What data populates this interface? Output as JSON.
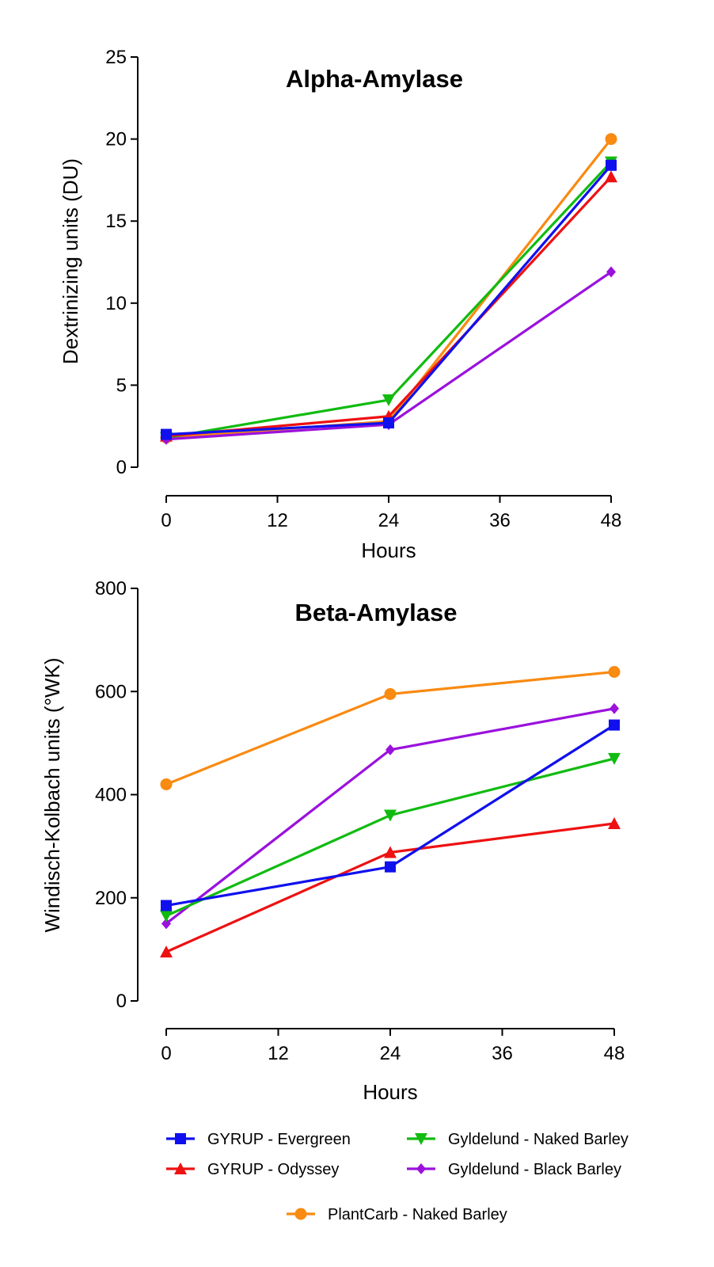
{
  "legend": [
    {
      "name": "GYRUP - Evergreen",
      "color": "#1010ee",
      "marker": "square"
    },
    {
      "name": "GYRUP - Odyssey",
      "color": "#ee1111",
      "marker": "triangle-up"
    },
    {
      "name": "Gyldelund - Naked Barley",
      "color": "#11bb11",
      "marker": "triangle-down"
    },
    {
      "name": "Gyldelund - Black Barley",
      "color": "#9a11dd",
      "marker": "diamond"
    },
    {
      "name": "PlantCarb - Naked Barley",
      "color": "#f98a12",
      "marker": "circle"
    }
  ],
  "chart_data": [
    {
      "type": "line",
      "title": "Alpha-Amylase",
      "xlabel": "Hours",
      "ylabel": "Dextrinizing units (DU)",
      "x": [
        0,
        24,
        48
      ],
      "xticks": [
        0,
        12,
        24,
        36,
        48
      ],
      "xlim": [
        0,
        48
      ],
      "yticks": [
        0,
        5,
        10,
        15,
        20,
        25
      ],
      "ylim": [
        0,
        25
      ],
      "grid": false,
      "series": [
        {
          "name": "PlantCarb - Naked Barley",
          "values": [
            1.8,
            2.8,
            20.0
          ]
        },
        {
          "name": "Gyldelund - Naked Barley",
          "values": [
            1.8,
            4.1,
            18.6
          ]
        },
        {
          "name": "GYRUP - Odyssey",
          "values": [
            1.9,
            3.1,
            17.7
          ]
        },
        {
          "name": "Gyldelund - Black Barley",
          "values": [
            1.7,
            2.6,
            11.9
          ]
        },
        {
          "name": "GYRUP - Evergreen",
          "values": [
            2.0,
            2.7,
            18.4
          ]
        }
      ]
    },
    {
      "type": "line",
      "title": "Beta-Amylase",
      "xlabel": "Hours",
      "ylabel": "Windisch-Kolbach units (°WK)",
      "x": [
        0,
        24,
        48
      ],
      "xticks": [
        0,
        12,
        24,
        36,
        48
      ],
      "xlim": [
        0,
        48
      ],
      "yticks": [
        0,
        200,
        400,
        600,
        800
      ],
      "ylim": [
        0,
        800
      ],
      "grid": false,
      "series": [
        {
          "name": "PlantCarb - Naked Barley",
          "values": [
            420,
            595,
            638
          ]
        },
        {
          "name": "Gyldelund - Black Barley",
          "values": [
            150,
            487,
            567
          ]
        },
        {
          "name": "Gyldelund - Naked Barley",
          "values": [
            165,
            360,
            470
          ]
        },
        {
          "name": "GYRUP - Odyssey",
          "values": [
            95,
            288,
            344
          ]
        },
        {
          "name": "GYRUP - Evergreen",
          "values": [
            185,
            260,
            535
          ]
        }
      ]
    }
  ]
}
